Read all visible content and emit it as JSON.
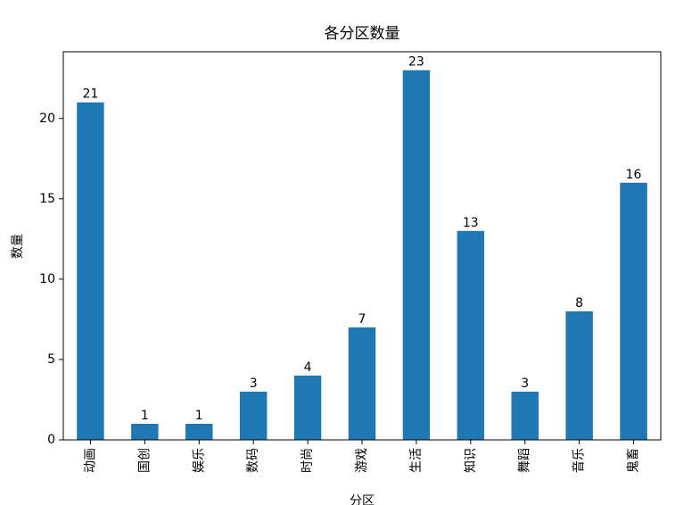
{
  "chart_data": {
    "type": "bar",
    "title": "各分区数量",
    "x_label": "分区",
    "y_label": "数量",
    "categories": [
      "动画",
      "国创",
      "娱乐",
      "数码",
      "时尚",
      "游戏",
      "生活",
      "知识",
      "舞蹈",
      "音乐",
      "鬼畜"
    ],
    "values": [
      21,
      1,
      1,
      3,
      4,
      7,
      23,
      13,
      3,
      8,
      16
    ],
    "color": "#1f77b4",
    "ylim": [
      0,
      24.15
    ],
    "yticks": [
      0,
      5,
      10,
      15,
      20
    ],
    "grid": false
  }
}
